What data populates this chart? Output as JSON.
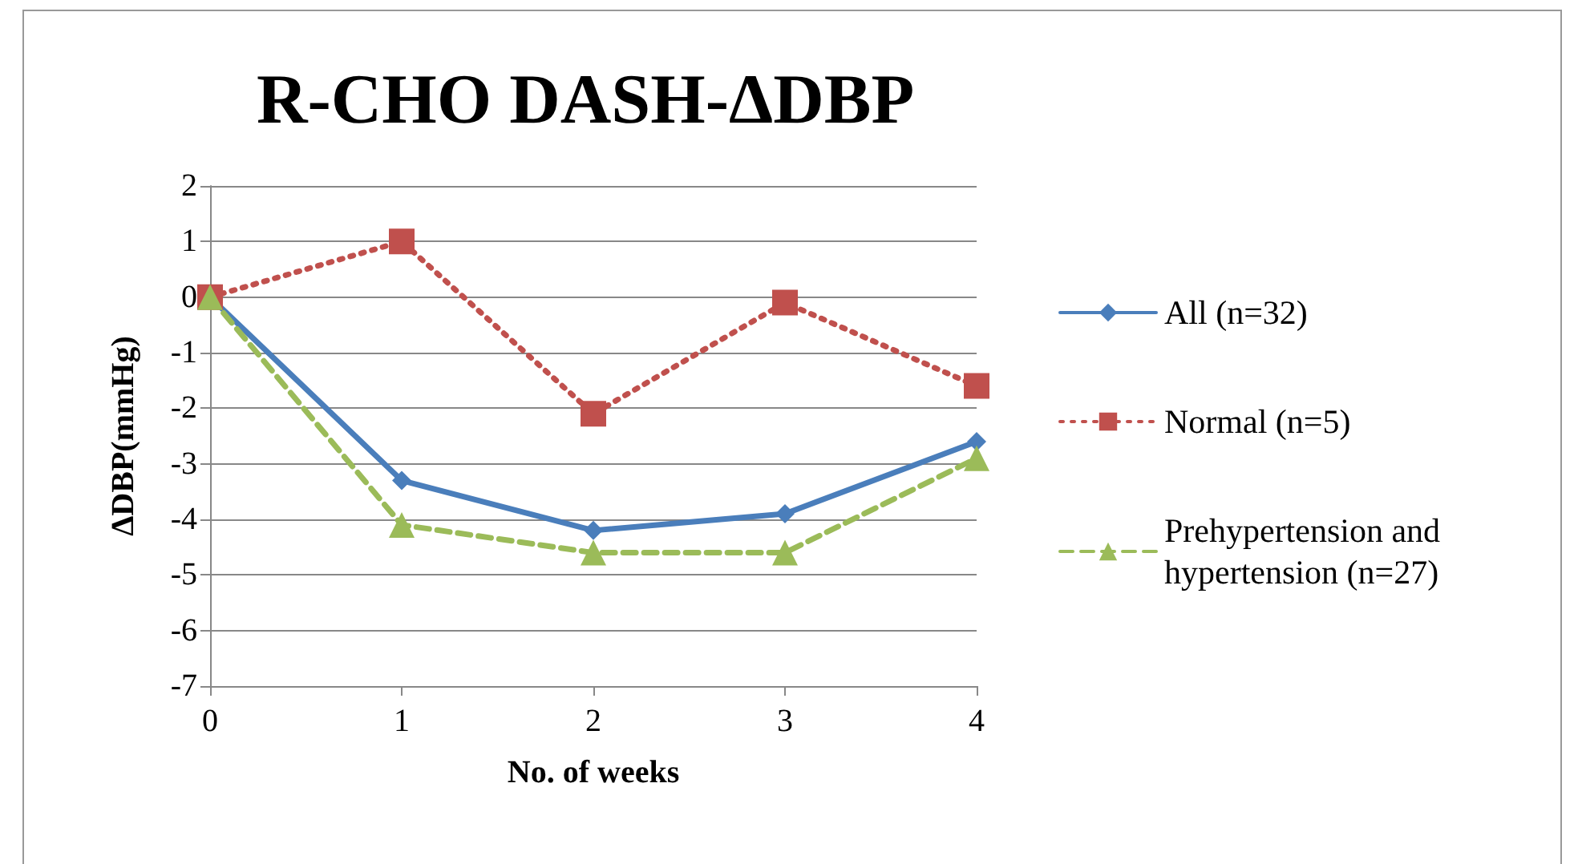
{
  "chart_data": {
    "type": "line",
    "title": "R-CHO DASH-ΔDBP",
    "xlabel": "No. of weeks",
    "ylabel": "ΔDBP(mmHg)",
    "x": [
      0,
      1,
      2,
      3,
      4
    ],
    "series": [
      {
        "name": "All (n=32)",
        "color": "#4a7ebb",
        "marker": "diamond",
        "line_style": "solid",
        "values": [
          0,
          -3.3,
          -4.2,
          -3.9,
          -2.6
        ]
      },
      {
        "name": "Normal (n=5)",
        "color": "#c0504d",
        "marker": "square",
        "line_style": "dotted",
        "values": [
          0,
          1,
          -2.1,
          -0.1,
          -1.6
        ]
      },
      {
        "name": "Prehypertension and hypertension (n=27)",
        "color": "#9bbb59",
        "marker": "triangle",
        "line_style": "dashed",
        "values": [
          0,
          -4.1,
          -4.6,
          -4.6,
          -2.9
        ]
      }
    ],
    "xlim": [
      0,
      4
    ],
    "xticks": [
      0,
      1,
      2,
      3,
      4
    ],
    "ylim": [
      -7,
      2
    ],
    "yticks": [
      -7,
      -6,
      -5,
      -4,
      -3,
      -2,
      -1,
      0,
      1,
      2
    ],
    "grid": "y",
    "legend": "right"
  }
}
